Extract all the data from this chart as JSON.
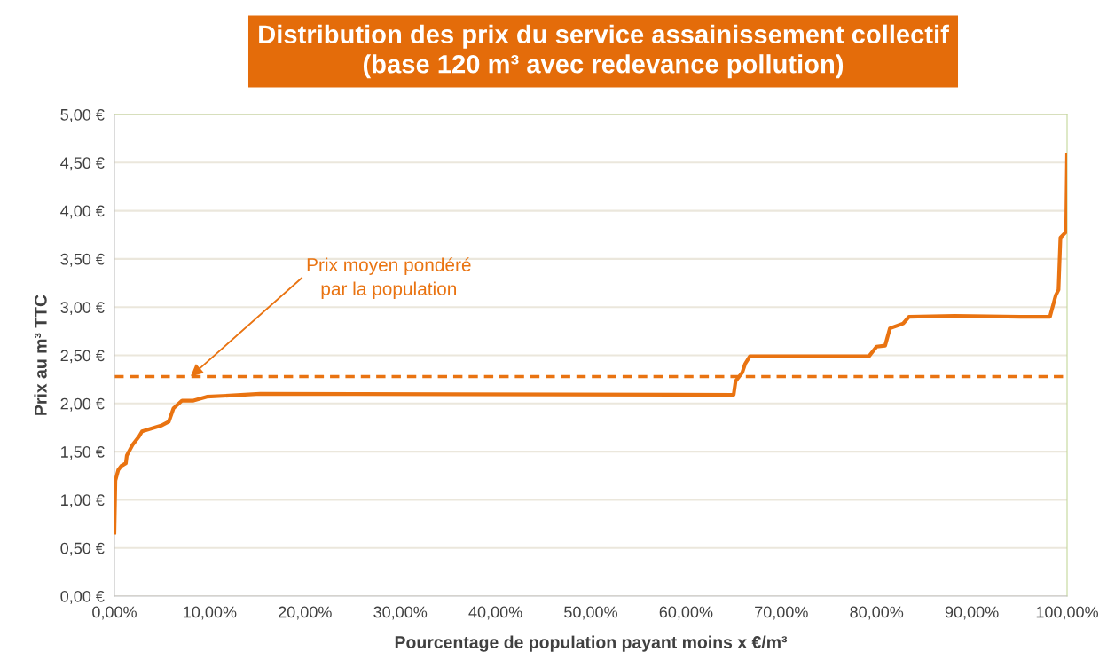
{
  "chart_data": {
    "type": "line",
    "title": "Distribution des prix du service assainissement collectif\n(base 120 m³ avec redevance pollution)",
    "xlabel": "Pourcentage de population payant moins x €/m³",
    "ylabel": "Prix au m³ TTC",
    "x": [
      0,
      0.1,
      0.4,
      0.7,
      1.2,
      1.3,
      1.9,
      2.6,
      2.9,
      4.9,
      5.7,
      6.2,
      7.1,
      8.3,
      9.7,
      15.3,
      65.0,
      65.2,
      65.9,
      66.2,
      66.7,
      79.2,
      80.0,
      80.9,
      81.4,
      82.8,
      83.4,
      88.2,
      95.1,
      98.2,
      98.8,
      99.1,
      99.3,
      99.9,
      100
    ],
    "series": [
      {
        "color": "#e97311",
        "values": [
          0.66,
          1.2,
          1.31,
          1.35,
          1.38,
          1.46,
          1.57,
          1.66,
          1.71,
          1.77,
          1.81,
          1.95,
          2.03,
          2.03,
          2.07,
          2.1,
          2.09,
          2.23,
          2.32,
          2.41,
          2.49,
          2.49,
          2.59,
          2.6,
          2.78,
          2.83,
          2.9,
          2.91,
          2.9,
          2.9,
          3.12,
          3.18,
          3.72,
          3.78,
          4.58
        ]
      }
    ],
    "xlim": [
      0,
      100
    ],
    "ylim": [
      0,
      5
    ],
    "xticks": [
      {
        "value": 0,
        "label": "0,00%"
      },
      {
        "value": 10,
        "label": "10,00%"
      },
      {
        "value": 20,
        "label": "20,00%"
      },
      {
        "value": 30,
        "label": "30,00%"
      },
      {
        "value": 40,
        "label": "40,00%"
      },
      {
        "value": 50,
        "label": "50,00%"
      },
      {
        "value": 60,
        "label": "60,00%"
      },
      {
        "value": 70,
        "label": "70,00%"
      },
      {
        "value": 80,
        "label": "80,00%"
      },
      {
        "value": 90,
        "label": "90,00%"
      },
      {
        "value": 100,
        "label": "100,00%"
      }
    ],
    "yticks": [
      {
        "value": 0,
        "label": "0,00 €"
      },
      {
        "value": 0.5,
        "label": "0,50 €"
      },
      {
        "value": 1,
        "label": "1,00 €"
      },
      {
        "value": 1.5,
        "label": "1,50 €"
      },
      {
        "value": 2,
        "label": "2,00 €"
      },
      {
        "value": 2.5,
        "label": "2,50 €"
      },
      {
        "value": 3,
        "label": "3,00 €"
      },
      {
        "value": 3.5,
        "label": "3,50 €"
      },
      {
        "value": 4,
        "label": "4,00 €"
      },
      {
        "value": 4.5,
        "label": "4,50 €"
      },
      {
        "value": 5,
        "label": "5,00 €"
      }
    ],
    "ref_lines": [
      {
        "axis": "y",
        "value": 2.28,
        "color": "#e97311",
        "line_style": "dashed"
      }
    ],
    "annotations": [
      {
        "text": "Prix moyen pondéré\npar la population",
        "x": 8,
        "y": 2.28
      }
    ],
    "grid": "y",
    "legend": false,
    "marker": "none",
    "line_style": "solid"
  }
}
